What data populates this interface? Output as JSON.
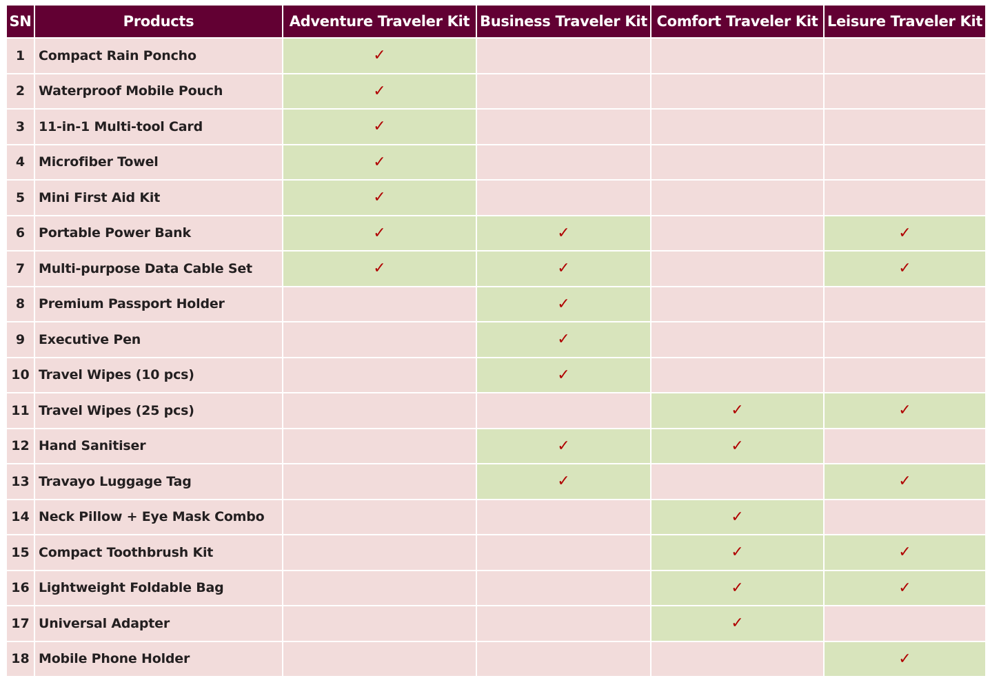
{
  "table": {
    "headers": [
      "SN",
      "Products",
      "Adventure Traveler Kit",
      "Business Traveler Kit",
      "Comfort Traveler Kit",
      "Leisure Traveler Kit"
    ],
    "check_glyph": "✓",
    "colors": {
      "header_bg": "#620033",
      "header_text": "#ffffff",
      "cell_bg": "#f2dcdb",
      "included_bg": "#d8e4bc",
      "check_color": "#b00000"
    },
    "rows": [
      {
        "sn": "1",
        "product": "Compact Rain Poncho",
        "kits": [
          true,
          false,
          false,
          false
        ]
      },
      {
        "sn": "2",
        "product": "Waterproof Mobile Pouch",
        "kits": [
          true,
          false,
          false,
          false
        ]
      },
      {
        "sn": "3",
        "product": "11-in-1 Multi-tool Card",
        "kits": [
          true,
          false,
          false,
          false
        ]
      },
      {
        "sn": "4",
        "product": "Microfiber Towel",
        "kits": [
          true,
          false,
          false,
          false
        ]
      },
      {
        "sn": "5",
        "product": "Mini First Aid Kit",
        "kits": [
          true,
          false,
          false,
          false
        ]
      },
      {
        "sn": "6",
        "product": "Portable Power Bank",
        "kits": [
          true,
          true,
          false,
          true
        ]
      },
      {
        "sn": "7",
        "product": "Multi-purpose Data Cable Set",
        "kits": [
          true,
          true,
          false,
          true
        ]
      },
      {
        "sn": "8",
        "product": "Premium Passport Holder",
        "kits": [
          false,
          true,
          false,
          false
        ]
      },
      {
        "sn": "9",
        "product": "Executive Pen",
        "kits": [
          false,
          true,
          false,
          false
        ]
      },
      {
        "sn": "10",
        "product": "Travel Wipes (10 pcs)",
        "kits": [
          false,
          true,
          false,
          false
        ]
      },
      {
        "sn": "11",
        "product": "Travel Wipes (25 pcs)",
        "kits": [
          false,
          false,
          true,
          true
        ]
      },
      {
        "sn": "12",
        "product": "Hand Sanitiser",
        "kits": [
          false,
          true,
          true,
          false
        ]
      },
      {
        "sn": "13",
        "product": "Travayo Luggage Tag",
        "kits": [
          false,
          true,
          false,
          true
        ]
      },
      {
        "sn": "14",
        "product": "Neck Pillow + Eye Mask Combo",
        "kits": [
          false,
          false,
          true,
          false
        ]
      },
      {
        "sn": "15",
        "product": "Compact Toothbrush Kit",
        "kits": [
          false,
          false,
          true,
          true
        ]
      },
      {
        "sn": "16",
        "product": "Lightweight Foldable Bag",
        "kits": [
          false,
          false,
          true,
          true
        ]
      },
      {
        "sn": "17",
        "product": "Universal Adapter",
        "kits": [
          false,
          false,
          true,
          false
        ]
      },
      {
        "sn": "18",
        "product": "Mobile Phone Holder",
        "kits": [
          false,
          false,
          false,
          true
        ]
      }
    ]
  }
}
